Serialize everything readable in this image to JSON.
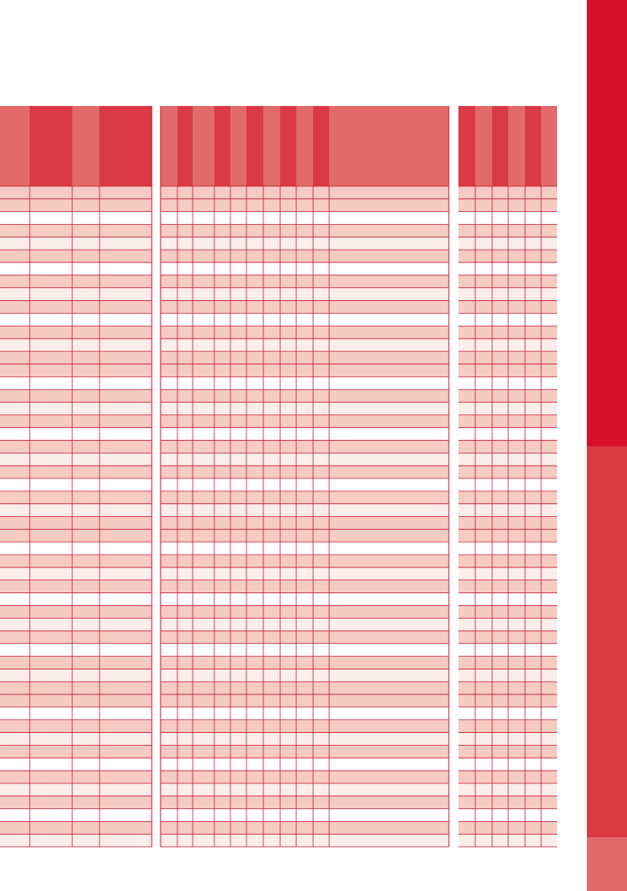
{
  "palette": {
    "page_bg": "#ffffff",
    "header_dark": "#d93a45",
    "header_light": "#e36a6a",
    "row_pink": "#f5cbc4",
    "row_pale": "#fbeeea",
    "row_white": "#ffffff",
    "grid_line": "#c8102e",
    "sidebar_top": "#d6102a",
    "sidebar_mid": "#db3a43",
    "sidebar_bottom": "#e36a6a"
  },
  "sidebar": {
    "blocks": [
      "primary",
      "secondary",
      "tertiary"
    ]
  },
  "tables": [
    {
      "name": "left-table",
      "header_shades": [
        "light",
        "dark",
        "light",
        "dark"
      ],
      "row_count": 52
    },
    {
      "name": "middle-table",
      "header_shades": [
        "light",
        "dark",
        "light",
        "dark",
        "light",
        "dark",
        "light",
        "dark",
        "light",
        "dark",
        "light"
      ],
      "row_count": 52
    },
    {
      "name": "right-table",
      "header_shades": [
        "dark",
        "light",
        "dark",
        "light",
        "dark",
        "light"
      ],
      "row_count": 52
    }
  ]
}
